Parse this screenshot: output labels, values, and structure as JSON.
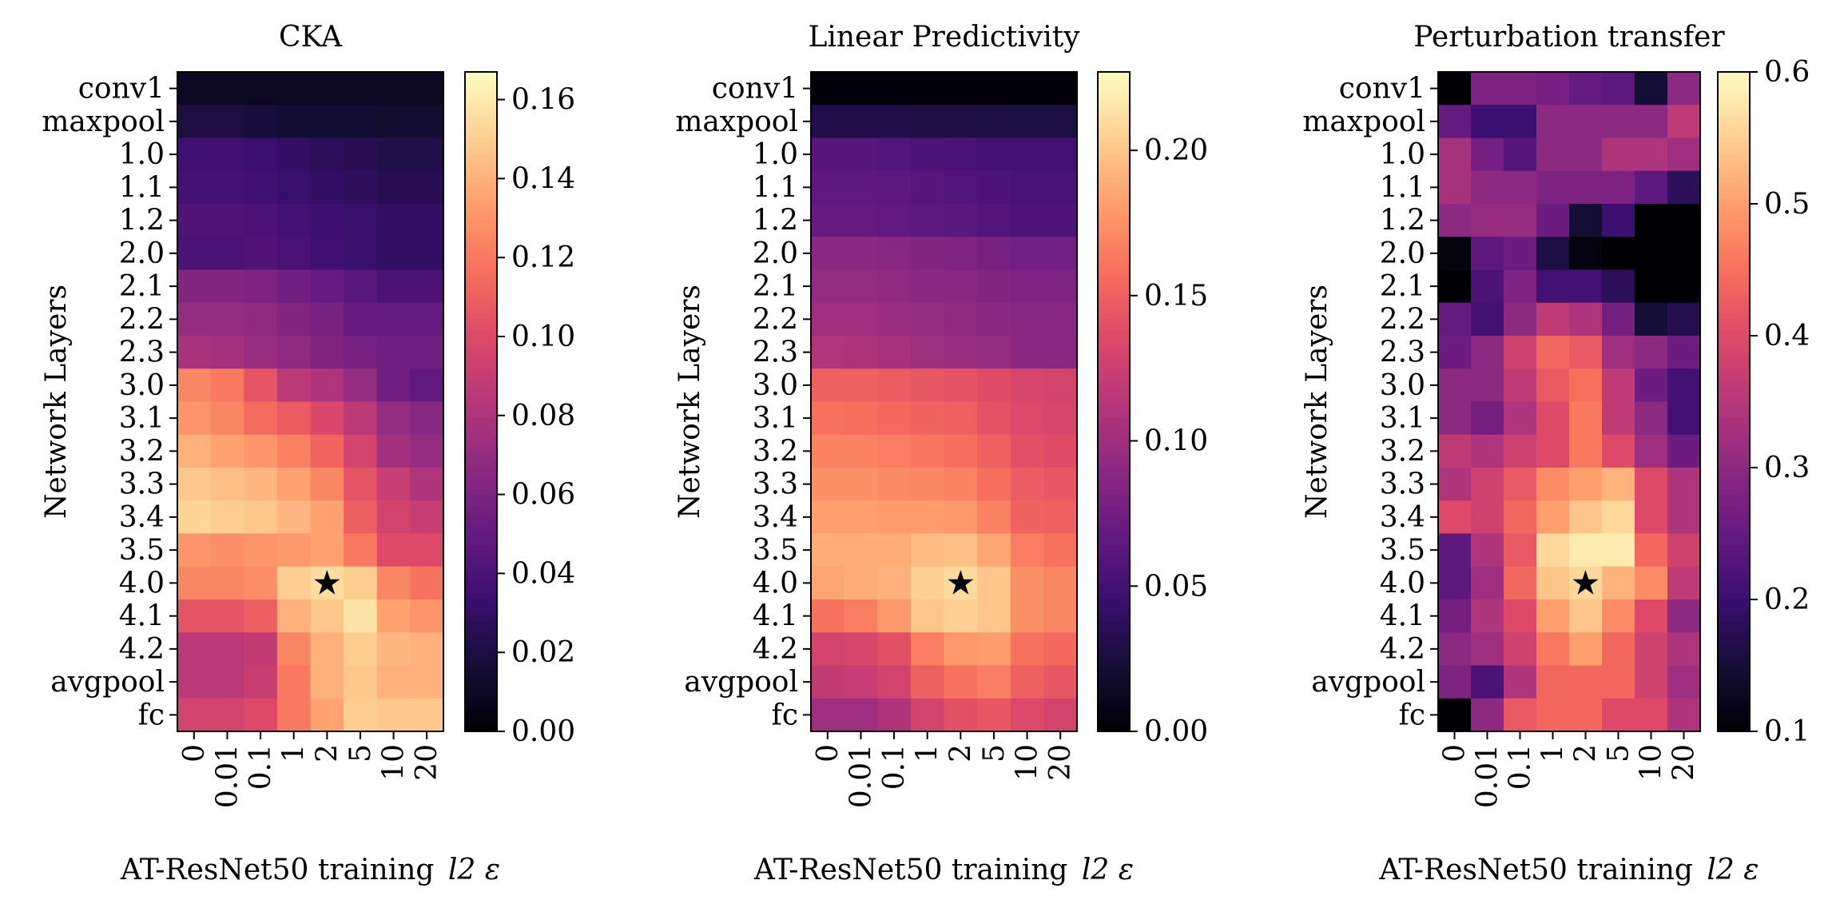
{
  "chart_data": [
    {
      "type": "heatmap",
      "title": "CKA",
      "xlabel": "AT-ResNet50 training",
      "xlabel_math": "l2 ε",
      "ylabel": "Network Layers",
      "x_categories": [
        "0",
        "0.01",
        "0.1",
        "1",
        "2",
        "5",
        "10",
        "20"
      ],
      "y_categories": [
        "conv1",
        "maxpool",
        "1.0",
        "1.1",
        "1.2",
        "2.0",
        "2.1",
        "2.2",
        "2.3",
        "3.0",
        "3.1",
        "3.2",
        "3.3",
        "3.4",
        "3.5",
        "4.0",
        "4.1",
        "4.2",
        "avgpool",
        "fc"
      ],
      "colormap": "magma",
      "vmin": 0.0,
      "vmax": 0.167,
      "colorbar_ticks": [
        0.0,
        0.02,
        0.04,
        0.06,
        0.08,
        0.1,
        0.12,
        0.14,
        0.16
      ],
      "colorbar_tick_labels": [
        "0.00",
        "0.02",
        "0.04",
        "0.06",
        "0.08",
        "0.10",
        "0.12",
        "0.14",
        "0.16"
      ],
      "marker": {
        "x": "2",
        "y": "4.0",
        "symbol": "★"
      },
      "values": [
        [
          0.01,
          0.01,
          0.01,
          0.01,
          0.01,
          0.01,
          0.01,
          0.01
        ],
        [
          0.02,
          0.02,
          0.018,
          0.016,
          0.016,
          0.016,
          0.015,
          0.015
        ],
        [
          0.035,
          0.035,
          0.033,
          0.03,
          0.027,
          0.025,
          0.022,
          0.022
        ],
        [
          0.037,
          0.037,
          0.035,
          0.032,
          0.03,
          0.028,
          0.025,
          0.025
        ],
        [
          0.042,
          0.042,
          0.04,
          0.036,
          0.034,
          0.032,
          0.03,
          0.03
        ],
        [
          0.04,
          0.04,
          0.042,
          0.038,
          0.035,
          0.032,
          0.03,
          0.03
        ],
        [
          0.062,
          0.062,
          0.06,
          0.055,
          0.05,
          0.045,
          0.04,
          0.04
        ],
        [
          0.07,
          0.07,
          0.068,
          0.062,
          0.058,
          0.052,
          0.05,
          0.05
        ],
        [
          0.078,
          0.076,
          0.072,
          0.068,
          0.062,
          0.058,
          0.055,
          0.055
        ],
        [
          0.125,
          0.12,
          0.105,
          0.085,
          0.08,
          0.07,
          0.055,
          0.048
        ],
        [
          0.13,
          0.125,
          0.115,
          0.108,
          0.098,
          0.085,
          0.07,
          0.065
        ],
        [
          0.14,
          0.135,
          0.13,
          0.123,
          0.112,
          0.095,
          0.075,
          0.07
        ],
        [
          0.148,
          0.145,
          0.142,
          0.135,
          0.125,
          0.105,
          0.09,
          0.08
        ],
        [
          0.152,
          0.15,
          0.148,
          0.142,
          0.135,
          0.11,
          0.095,
          0.09
        ],
        [
          0.13,
          0.128,
          0.13,
          0.132,
          0.135,
          0.12,
          0.1,
          0.1
        ],
        [
          0.125,
          0.125,
          0.128,
          0.15,
          0.155,
          0.15,
          0.125,
          0.118
        ],
        [
          0.105,
          0.105,
          0.11,
          0.14,
          0.148,
          0.158,
          0.135,
          0.13
        ],
        [
          0.085,
          0.085,
          0.088,
          0.125,
          0.14,
          0.15,
          0.142,
          0.14
        ],
        [
          0.085,
          0.085,
          0.09,
          0.12,
          0.14,
          0.148,
          0.14,
          0.14
        ],
        [
          0.095,
          0.095,
          0.1,
          0.12,
          0.135,
          0.15,
          0.148,
          0.148
        ]
      ]
    },
    {
      "type": "heatmap",
      "title": "Linear Predictivity",
      "xlabel": "AT-ResNet50 training",
      "xlabel_math": "l2 ε",
      "ylabel": "Network Layers",
      "x_categories": [
        "0",
        "0.01",
        "0.1",
        "1",
        "2",
        "5",
        "10",
        "20"
      ],
      "y_categories": [
        "conv1",
        "maxpool",
        "1.0",
        "1.1",
        "1.2",
        "2.0",
        "2.1",
        "2.2",
        "2.3",
        "3.0",
        "3.1",
        "3.2",
        "3.3",
        "3.4",
        "3.5",
        "4.0",
        "4.1",
        "4.2",
        "avgpool",
        "fc"
      ],
      "colormap": "magma",
      "vmin": 0.0,
      "vmax": 0.227,
      "colorbar_ticks": [
        0.0,
        0.05,
        0.1,
        0.15,
        0.2
      ],
      "colorbar_tick_labels": [
        "0.00",
        "0.05",
        "0.10",
        "0.15",
        "0.20"
      ],
      "marker": {
        "x": "2",
        "y": "4.0",
        "symbol": "★"
      },
      "values": [
        [
          0.003,
          0.003,
          0.003,
          0.003,
          0.003,
          0.003,
          0.003,
          0.003
        ],
        [
          0.03,
          0.03,
          0.03,
          0.028,
          0.028,
          0.027,
          0.027,
          0.027
        ],
        [
          0.06,
          0.06,
          0.058,
          0.055,
          0.053,
          0.05,
          0.05,
          0.05
        ],
        [
          0.065,
          0.065,
          0.063,
          0.06,
          0.058,
          0.055,
          0.053,
          0.053
        ],
        [
          0.068,
          0.068,
          0.066,
          0.064,
          0.062,
          0.058,
          0.056,
          0.056
        ],
        [
          0.09,
          0.09,
          0.088,
          0.085,
          0.082,
          0.078,
          0.075,
          0.075
        ],
        [
          0.095,
          0.095,
          0.093,
          0.09,
          0.088,
          0.085,
          0.082,
          0.082
        ],
        [
          0.1,
          0.1,
          0.098,
          0.095,
          0.093,
          0.09,
          0.088,
          0.088
        ],
        [
          0.11,
          0.108,
          0.105,
          0.1,
          0.098,
          0.095,
          0.09,
          0.09
        ],
        [
          0.15,
          0.15,
          0.148,
          0.145,
          0.142,
          0.138,
          0.132,
          0.13
        ],
        [
          0.16,
          0.158,
          0.155,
          0.152,
          0.15,
          0.142,
          0.135,
          0.132
        ],
        [
          0.168,
          0.168,
          0.165,
          0.162,
          0.158,
          0.15,
          0.14,
          0.138
        ],
        [
          0.175,
          0.175,
          0.172,
          0.17,
          0.168,
          0.158,
          0.148,
          0.145
        ],
        [
          0.182,
          0.182,
          0.18,
          0.18,
          0.178,
          0.168,
          0.152,
          0.15
        ],
        [
          0.188,
          0.188,
          0.188,
          0.195,
          0.198,
          0.185,
          0.165,
          0.16
        ],
        [
          0.185,
          0.188,
          0.19,
          0.205,
          0.21,
          0.2,
          0.175,
          0.17
        ],
        [
          0.16,
          0.165,
          0.178,
          0.2,
          0.205,
          0.2,
          0.175,
          0.17
        ],
        [
          0.13,
          0.132,
          0.14,
          0.165,
          0.178,
          0.18,
          0.16,
          0.155
        ],
        [
          0.12,
          0.122,
          0.13,
          0.15,
          0.16,
          0.165,
          0.15,
          0.145
        ],
        [
          0.1,
          0.1,
          0.108,
          0.13,
          0.14,
          0.145,
          0.135,
          0.13
        ]
      ]
    },
    {
      "type": "heatmap",
      "title": "Perturbation transfer",
      "xlabel": "AT-ResNet50 training",
      "xlabel_math": "l2 ε",
      "ylabel": "Network Layers",
      "x_categories": [
        "0",
        "0.01",
        "0.1",
        "1",
        "2",
        "5",
        "10",
        "20"
      ],
      "y_categories": [
        "conv1",
        "maxpool",
        "1.0",
        "1.1",
        "1.2",
        "2.0",
        "2.1",
        "2.2",
        "2.3",
        "3.0",
        "3.1",
        "3.2",
        "3.3",
        "3.4",
        "3.5",
        "4.0",
        "4.1",
        "4.2",
        "avgpool",
        "fc"
      ],
      "colormap": "magma",
      "vmin": 0.1,
      "vmax": 0.6,
      "colorbar_ticks": [
        0.1,
        0.2,
        0.3,
        0.4,
        0.5,
        0.6
      ],
      "colorbar_tick_labels": [
        "0.1",
        "0.2",
        "0.3",
        "0.4",
        "0.5",
        "0.6"
      ],
      "marker": {
        "x": "2",
        "y": "4.0",
        "symbol": "★"
      },
      "values": [
        [
          0.1,
          0.28,
          0.28,
          0.27,
          0.25,
          0.24,
          0.15,
          0.3
        ],
        [
          0.25,
          0.2,
          0.2,
          0.3,
          0.3,
          0.3,
          0.3,
          0.36
        ],
        [
          0.33,
          0.27,
          0.23,
          0.3,
          0.3,
          0.34,
          0.34,
          0.32
        ],
        [
          0.33,
          0.3,
          0.3,
          0.28,
          0.28,
          0.28,
          0.24,
          0.18
        ],
        [
          0.3,
          0.31,
          0.31,
          0.26,
          0.15,
          0.2,
          0.1,
          0.1
        ],
        [
          0.11,
          0.24,
          0.26,
          0.16,
          0.11,
          0.1,
          0.1,
          0.1
        ],
        [
          0.1,
          0.22,
          0.28,
          0.21,
          0.21,
          0.18,
          0.1,
          0.1
        ],
        [
          0.25,
          0.21,
          0.3,
          0.36,
          0.34,
          0.27,
          0.15,
          0.17
        ],
        [
          0.26,
          0.3,
          0.38,
          0.44,
          0.42,
          0.32,
          0.3,
          0.26
        ],
        [
          0.3,
          0.3,
          0.36,
          0.42,
          0.45,
          0.36,
          0.26,
          0.21
        ],
        [
          0.3,
          0.27,
          0.34,
          0.4,
          0.46,
          0.36,
          0.3,
          0.21
        ],
        [
          0.36,
          0.34,
          0.38,
          0.4,
          0.46,
          0.4,
          0.32,
          0.26
        ],
        [
          0.34,
          0.38,
          0.42,
          0.48,
          0.5,
          0.52,
          0.4,
          0.34
        ],
        [
          0.4,
          0.38,
          0.44,
          0.5,
          0.54,
          0.56,
          0.4,
          0.34
        ],
        [
          0.24,
          0.34,
          0.42,
          0.56,
          0.58,
          0.58,
          0.44,
          0.38
        ],
        [
          0.24,
          0.32,
          0.44,
          0.54,
          0.56,
          0.52,
          0.48,
          0.36
        ],
        [
          0.27,
          0.34,
          0.4,
          0.5,
          0.54,
          0.48,
          0.4,
          0.3
        ],
        [
          0.3,
          0.32,
          0.38,
          0.46,
          0.5,
          0.44,
          0.38,
          0.34
        ],
        [
          0.28,
          0.22,
          0.34,
          0.44,
          0.44,
          0.44,
          0.38,
          0.32
        ],
        [
          0.1,
          0.3,
          0.42,
          0.44,
          0.44,
          0.4,
          0.4,
          0.34
        ]
      ]
    }
  ]
}
